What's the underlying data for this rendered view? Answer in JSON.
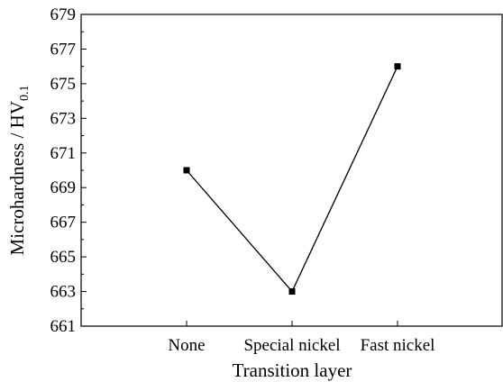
{
  "chart_data": {
    "type": "line",
    "categories": [
      "None",
      "Special nickel",
      "Fast nickel"
    ],
    "series": [
      {
        "values": [
          670,
          663,
          676
        ],
        "color": "#000000",
        "marker": "square"
      }
    ],
    "xlabel": "Transition layer",
    "ylabel": {
      "main": "Microhardness / HV",
      "subscript": "0.1"
    },
    "ylim": [
      661,
      679
    ],
    "yticks": [
      661,
      663,
      665,
      667,
      669,
      671,
      673,
      675,
      677,
      679
    ],
    "ytick_labels": [
      "661",
      "663",
      "665",
      "667",
      "669",
      "671",
      "673",
      "675",
      "677",
      "679"
    ],
    "grid": false,
    "legend": "none"
  }
}
